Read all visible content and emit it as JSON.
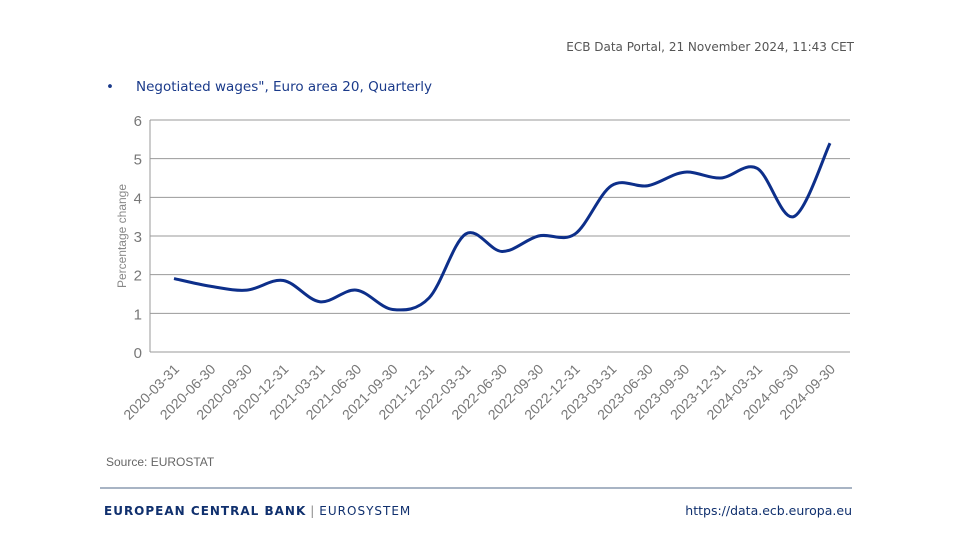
{
  "header": {
    "stamp": "ECB Data Portal, 21 November 2024, 11:43  CET"
  },
  "footer": {
    "source": "Source: EUROSTAT",
    "brand": "EUROPEAN CENTRAL BANK",
    "brand_sub": "EUROSYSTEM",
    "url": "https://data.ecb.europa.eu"
  },
  "chart_data": {
    "type": "line",
    "title": "",
    "legend": [
      "Negotiated wages\", Euro area 20, Quarterly"
    ],
    "legend_placement": "top-left",
    "ylabel": "Percentage change",
    "xlabel": "",
    "ylim": [
      0,
      6
    ],
    "yticks": [
      0,
      1,
      2,
      3,
      4,
      5,
      6
    ],
    "grid": true,
    "color": "#0d2f8a",
    "categories": [
      "2020-03-31",
      "2020-06-30",
      "2020-09-30",
      "2020-12-31",
      "2021-03-31",
      "2021-06-30",
      "2021-09-30",
      "2021-12-31",
      "2022-03-31",
      "2022-06-30",
      "2022-09-30",
      "2022-12-31",
      "2023-03-31",
      "2023-06-30",
      "2023-09-30",
      "2023-12-31",
      "2024-03-31",
      "2024-06-30",
      "2024-09-30"
    ],
    "series": [
      {
        "name": "Negotiated wages\", Euro area 20, Quarterly",
        "values": [
          1.9,
          1.7,
          1.6,
          1.85,
          1.3,
          1.6,
          1.1,
          1.4,
          3.05,
          2.6,
          3.0,
          3.05,
          4.3,
          4.3,
          4.65,
          4.5,
          4.75,
          3.5,
          5.4
        ]
      }
    ]
  }
}
